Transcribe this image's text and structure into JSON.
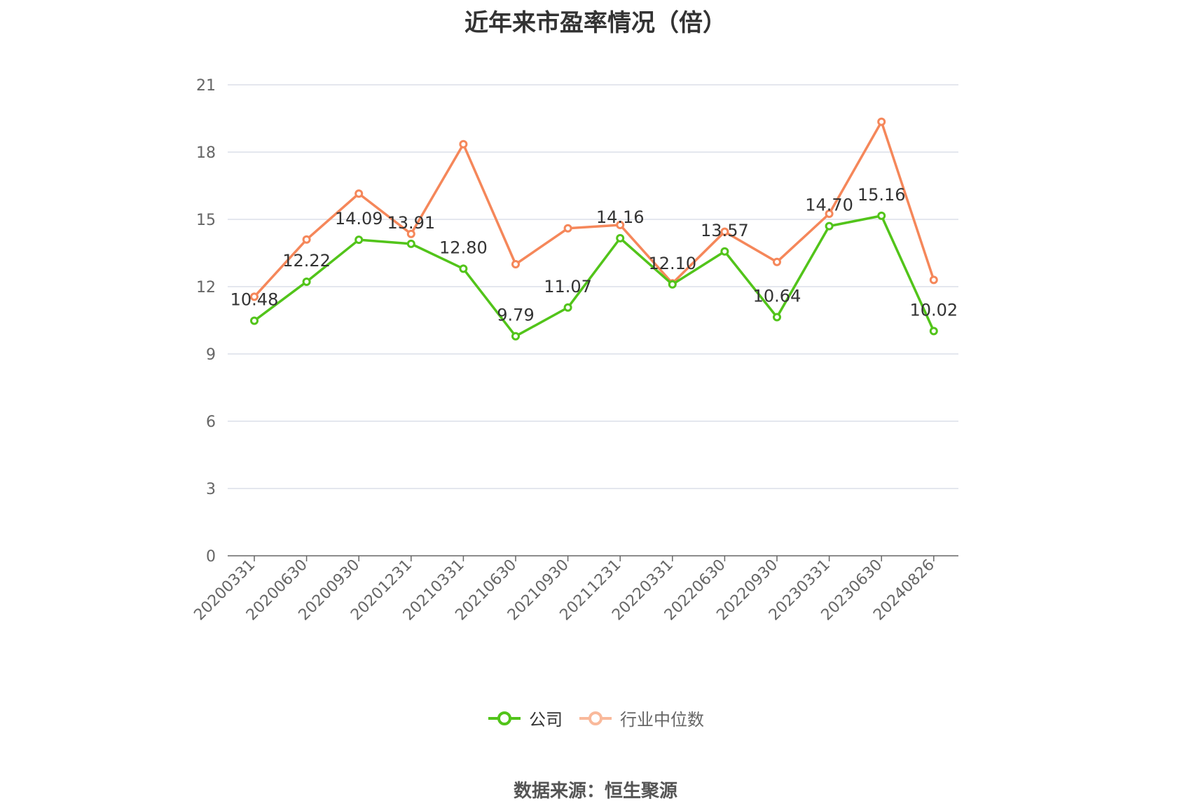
{
  "title": "近年来市盈率情况（倍）",
  "source_note": "数据来源：恒生聚源",
  "colors": {
    "company": "#52c41a",
    "industry": "#f5875a",
    "industry_legend": "#f9b99b",
    "grid": "#dcdfe8",
    "axis": "#666666"
  },
  "legend": [
    {
      "label": "公司"
    },
    {
      "label": "行业中位数"
    }
  ],
  "chart_data": {
    "type": "line",
    "title": "近年来市盈率情况（倍）",
    "xlabel": "",
    "ylabel": "",
    "ylim": [
      0,
      21
    ],
    "y_ticks": [
      0,
      3,
      6,
      9,
      12,
      15,
      18,
      21
    ],
    "grid": true,
    "legend_position": "bottom",
    "categories": [
      "20200331",
      "20200630",
      "20200930",
      "20201231",
      "20210331",
      "20210630",
      "20210930",
      "20211231",
      "20220331",
      "20220630",
      "20220930",
      "20230331",
      "20230630",
      "20240826"
    ],
    "series": [
      {
        "name": "公司",
        "values": [
          10.48,
          12.22,
          14.09,
          13.91,
          12.8,
          9.79,
          11.07,
          14.16,
          12.1,
          13.57,
          10.64,
          14.7,
          15.16,
          10.02
        ],
        "labels": [
          "10.48",
          "12.22",
          "14.09",
          "13.91",
          "12.80",
          "9.79",
          "11.07",
          "14.16",
          "12.10",
          "13.57",
          "10.64",
          "14.70",
          "15.16",
          "10.02"
        ]
      },
      {
        "name": "行业中位数",
        "values": [
          11.55,
          14.1,
          16.15,
          14.35,
          18.35,
          13.0,
          14.6,
          14.75,
          12.15,
          14.45,
          13.1,
          15.25,
          19.35,
          12.3
        ]
      }
    ]
  }
}
